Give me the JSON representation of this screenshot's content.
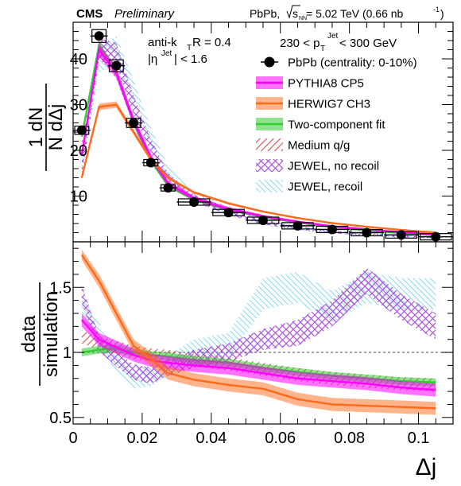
{
  "header": {
    "experiment": "CMS",
    "status": "Preliminary",
    "system": "PbPb, ",
    "energy_sqrt": "s",
    "energy_sub": "NN",
    "energy_value": " = 5.02 TeV (0.66 nb",
    "lumi_sup": "-1",
    "lumi_close": ")"
  },
  "annotations": {
    "algo": "anti-k",
    "algo_sub": "T",
    "radius": " R = 0.4",
    "eta_open": "|η",
    "eta_sup": "Jet",
    "eta_close": "| < 1.6",
    "pt_low": "230 < p",
    "pt_sub": "T",
    "pt_sup": "Jet",
    "pt_high": " < 300 GeV"
  },
  "colors": {
    "data": "#000000",
    "pythia": "#ff00ff",
    "herwig": "#ff6a1a",
    "twocomp": "#33cc33",
    "medium": "#cc5555",
    "jewel_norecoil": "#aa55dd",
    "jewel_recoil": "#66ccee",
    "ratio_line": "#666666"
  },
  "chart_data": [
    {
      "type": "line",
      "panel": "top",
      "ylabel_num": "1 dN",
      "ylabel_den": "N dΔj",
      "xlim": [
        0,
        0.11
      ],
      "ylim": [
        0,
        48
      ],
      "y_ticks": [
        10,
        20,
        30,
        40
      ],
      "x_ticks": [
        0,
        0.02,
        0.04,
        0.06,
        0.08,
        0.1
      ],
      "legend_position": "top-right",
      "legend": [
        {
          "key": "data",
          "label": "PbPb (centrality: 0-10%)"
        },
        {
          "key": "pythia",
          "label": "PYTHIA8 CP5"
        },
        {
          "key": "herwig",
          "label": "HERWIG7 CH3"
        },
        {
          "key": "twocomp",
          "label": "Two-component fit"
        },
        {
          "key": "medium",
          "label": "Medium q/g"
        },
        {
          "key": "jewel_norecoil",
          "label": "JEWEL, no recoil"
        },
        {
          "key": "jewel_recoil",
          "label": "JEWEL, recoil"
        }
      ],
      "data_points": {
        "x": [
          0.0025,
          0.0075,
          0.0125,
          0.0175,
          0.0225,
          0.0275,
          0.035,
          0.045,
          0.055,
          0.065,
          0.075,
          0.085,
          0.095,
          0.105
        ],
        "xerr": [
          0.0025,
          0.0025,
          0.0025,
          0.0025,
          0.0025,
          0.0025,
          0.005,
          0.005,
          0.005,
          0.005,
          0.005,
          0.005,
          0.005,
          0.005
        ],
        "y": [
          24.4,
          45.0,
          38.5,
          26.0,
          17.3,
          11.8,
          8.7,
          6.4,
          4.7,
          3.5,
          2.7,
          2.0,
          1.5,
          1.1
        ],
        "syst": [
          0.9,
          1.4,
          1.3,
          1.0,
          0.7,
          0.5,
          0.4,
          0.3,
          0.25,
          0.2,
          0.15,
          0.12,
          0.1,
          0.08
        ]
      },
      "series": [
        {
          "key": "jewel_recoil",
          "x": [
            0.0025,
            0.0075,
            0.0125,
            0.0175,
            0.0225,
            0.0275,
            0.035,
            0.045,
            0.055,
            0.065,
            0.075,
            0.085,
            0.095,
            0.105
          ],
          "y": [
            16,
            40,
            42,
            33,
            23,
            15,
            10,
            6.8,
            4.3,
            3.0,
            2.2,
            1.6,
            1.2,
            0.9
          ],
          "err": [
            2,
            3,
            3,
            2.5,
            2,
            1.5,
            1,
            0.8,
            0.6,
            0.5,
            0.4,
            0.3,
            0.3,
            0.2
          ]
        },
        {
          "key": "jewel_norecoil",
          "x": [
            0.0025,
            0.0075,
            0.0125,
            0.0175,
            0.0225,
            0.0275,
            0.035,
            0.045,
            0.055,
            0.065,
            0.075,
            0.085,
            0.095,
            0.105
          ],
          "y": [
            16,
            42,
            41,
            30,
            21,
            14,
            9.5,
            6.5,
            4.3,
            3.0,
            2.2,
            1.6,
            1.2,
            0.9
          ],
          "err": [
            1.5,
            2.5,
            2.5,
            2,
            1.5,
            1,
            0.8,
            0.6,
            0.5,
            0.4,
            0.3,
            0.3,
            0.2,
            0.2
          ]
        },
        {
          "key": "medium",
          "x": [
            0.0025,
            0.0075,
            0.0125,
            0.0175,
            0.0225,
            0.0275,
            0.035,
            0.045,
            0.055,
            0.065,
            0.075,
            0.085,
            0.095,
            0.105
          ],
          "y": [
            22,
            42,
            37,
            26.5,
            18,
            12.5,
            9.5,
            7.2,
            5.6,
            4.3,
            3.3,
            2.6,
            2.0,
            1.5
          ],
          "err": [
            1.2,
            1.5,
            1.4,
            1.1,
            0.8,
            0.6,
            0.5,
            0.4,
            0.3,
            0.3,
            0.2,
            0.2,
            0.15,
            0.12
          ]
        },
        {
          "key": "twocomp",
          "x": [
            0.0025,
            0.0075,
            0.0125,
            0.0175,
            0.0225,
            0.0275,
            0.035,
            0.045,
            0.055,
            0.065,
            0.075,
            0.085,
            0.095,
            0.105
          ],
          "y": [
            23,
            43,
            37,
            26,
            17.8,
            12.3,
            9.2,
            7.0,
            5.4,
            4.2,
            3.2,
            2.5,
            1.9,
            1.4
          ],
          "err": [
            0.6,
            0.8,
            0.7,
            0.6,
            0.5,
            0.4,
            0.3,
            0.25,
            0.2,
            0.15,
            0.12,
            0.1,
            0.08,
            0.06
          ]
        },
        {
          "key": "pythia",
          "x": [
            0.0025,
            0.0075,
            0.0125,
            0.0175,
            0.0225,
            0.0275,
            0.035,
            0.045,
            0.055,
            0.065,
            0.075,
            0.085,
            0.095,
            0.105
          ],
          "y": [
            19,
            42,
            37,
            26.5,
            18.5,
            12.8,
            9.5,
            7.2,
            5.6,
            4.4,
            3.4,
            2.7,
            2.1,
            1.6
          ],
          "err": [
            1.0,
            1.3,
            1.2,
            1.0,
            0.8,
            0.6,
            0.5,
            0.4,
            0.3,
            0.25,
            0.2,
            0.16,
            0.13,
            0.1
          ]
        },
        {
          "key": "herwig",
          "x": [
            0.0025,
            0.0075,
            0.0125,
            0.0175,
            0.0225,
            0.0275,
            0.035,
            0.045,
            0.055,
            0.065,
            0.075,
            0.085,
            0.095,
            0.105
          ],
          "y": [
            14,
            29.5,
            30,
            24,
            18,
            14,
            10.8,
            8.4,
            6.6,
            5.2,
            4.1,
            3.3,
            2.6,
            2.0
          ],
          "err": [
            0.5,
            0.7,
            0.7,
            0.6,
            0.5,
            0.4,
            0.3,
            0.25,
            0.2,
            0.16,
            0.13,
            0.1,
            0.08,
            0.06
          ]
        }
      ]
    },
    {
      "type": "line",
      "panel": "bottom",
      "ylabel_num": "data",
      "ylabel_den": "simulation",
      "xlabel": "Δj",
      "xlim": [
        0,
        0.11
      ],
      "ylim": [
        0.45,
        1.85
      ],
      "y_ticks": [
        0.5,
        1,
        1.5
      ],
      "y_tick_labels": [
        "0.5",
        "1",
        "1.5"
      ],
      "x_ticks": [
        0,
        0.02,
        0.04,
        0.06,
        0.08,
        0.1
      ],
      "x_tick_labels": [
        "0",
        "0.02",
        "0.04",
        "0.06",
        "0.08",
        "0.1"
      ],
      "reference_line": 1,
      "series": [
        {
          "key": "jewel_recoil",
          "x": [
            0.0025,
            0.0075,
            0.0125,
            0.0175,
            0.0225,
            0.0275,
            0.035,
            0.045,
            0.055,
            0.065,
            0.075,
            0.085,
            0.095,
            0.105
          ],
          "y": [
            1.35,
            1.15,
            0.92,
            0.8,
            0.82,
            0.9,
            1.0,
            1.05,
            1.45,
            1.5,
            1.35,
            1.5,
            1.45,
            1.45
          ],
          "err": [
            0.08,
            0.08,
            0.08,
            0.08,
            0.08,
            0.08,
            0.1,
            0.1,
            0.12,
            0.12,
            0.12,
            0.12,
            0.12,
            0.12
          ]
        },
        {
          "key": "jewel_norecoil",
          "x": [
            0.0025,
            0.0075,
            0.0125,
            0.0175,
            0.0225,
            0.0275,
            0.035,
            0.045,
            0.055,
            0.065,
            0.075,
            0.085,
            0.095,
            0.105
          ],
          "y": [
            1.45,
            1.07,
            0.95,
            0.85,
            0.82,
            0.88,
            0.95,
            1.0,
            1.1,
            1.15,
            1.3,
            1.55,
            1.35,
            1.2
          ],
          "err": [
            0.07,
            0.06,
            0.06,
            0.06,
            0.06,
            0.06,
            0.07,
            0.07,
            0.08,
            0.1,
            0.1,
            0.1,
            0.1,
            0.1
          ]
        },
        {
          "key": "medium",
          "x": [
            0.0025,
            0.0075,
            0.0125,
            0.0175,
            0.0225,
            0.0275,
            0.035,
            0.045,
            0.055,
            0.065,
            0.075,
            0.085,
            0.095,
            0.105
          ],
          "y": [
            1.12,
            1.07,
            1.04,
            1.0,
            0.98,
            0.97,
            0.94,
            0.91,
            0.87,
            0.83,
            0.8,
            0.78,
            0.76,
            0.75
          ],
          "err": [
            0.05,
            0.05,
            0.05,
            0.05,
            0.05,
            0.05,
            0.05,
            0.05,
            0.05,
            0.05,
            0.05,
            0.05,
            0.05,
            0.05
          ]
        },
        {
          "key": "twocomp",
          "x": [
            0.0025,
            0.0075,
            0.0125,
            0.0175,
            0.0225,
            0.0275,
            0.035,
            0.045,
            0.055,
            0.065,
            0.075,
            0.085,
            0.095,
            0.105
          ],
          "y": [
            1.0,
            1.02,
            1.03,
            1.0,
            0.98,
            0.97,
            0.94,
            0.92,
            0.88,
            0.85,
            0.82,
            0.8,
            0.78,
            0.77
          ],
          "err": [
            0.03,
            0.03,
            0.03,
            0.03,
            0.03,
            0.03,
            0.03,
            0.03,
            0.03,
            0.03,
            0.03,
            0.03,
            0.03,
            0.03
          ]
        },
        {
          "key": "pythia",
          "x": [
            0.0025,
            0.0075,
            0.0125,
            0.0175,
            0.0225,
            0.0275,
            0.035,
            0.045,
            0.055,
            0.065,
            0.075,
            0.085,
            0.095,
            0.105
          ],
          "y": [
            1.25,
            1.1,
            1.04,
            0.98,
            0.94,
            0.92,
            0.9,
            0.88,
            0.84,
            0.8,
            0.78,
            0.76,
            0.73,
            0.71
          ],
          "err": [
            0.05,
            0.05,
            0.05,
            0.05,
            0.05,
            0.05,
            0.05,
            0.05,
            0.05,
            0.05,
            0.05,
            0.05,
            0.05,
            0.05
          ]
        },
        {
          "key": "herwig",
          "x": [
            0.0025,
            0.0075,
            0.0125,
            0.0175,
            0.0225,
            0.0275,
            0.035,
            0.045,
            0.055,
            0.065,
            0.075,
            0.085,
            0.095,
            0.105
          ],
          "y": [
            1.75,
            1.55,
            1.3,
            1.05,
            0.95,
            0.84,
            0.79,
            0.75,
            0.72,
            0.64,
            0.6,
            0.59,
            0.58,
            0.57
          ],
          "err": [
            0.04,
            0.05,
            0.05,
            0.05,
            0.05,
            0.05,
            0.05,
            0.05,
            0.05,
            0.05,
            0.05,
            0.05,
            0.05,
            0.05
          ]
        }
      ]
    }
  ]
}
